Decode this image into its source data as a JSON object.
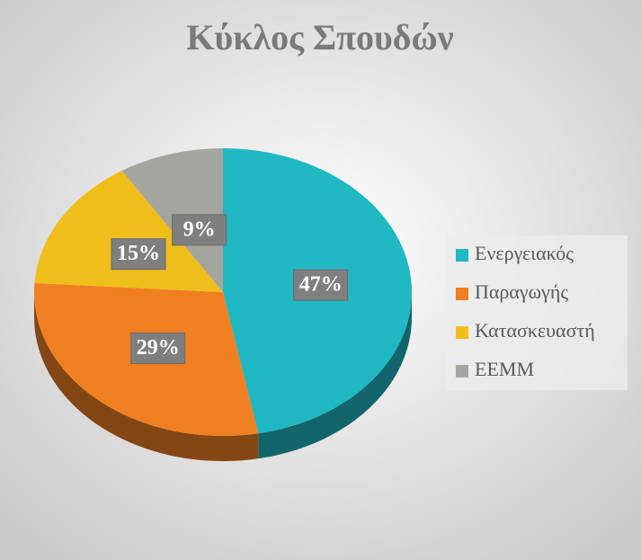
{
  "chart_data": {
    "type": "pie",
    "title": "Κύκλος Σπουδών",
    "categories": [
      "Ενεργειακός",
      "Παραγωγής",
      "Κατασκευαστή",
      "ΕΕΜΜ"
    ],
    "values": [
      47,
      29,
      15,
      9
    ],
    "value_labels": [
      "47%",
      "29%",
      "15%",
      "9%"
    ],
    "colors": [
      "#1fb8c3",
      "#f07f22",
      "#f0be1a",
      "#a5a5a0"
    ],
    "legend": "right"
  }
}
